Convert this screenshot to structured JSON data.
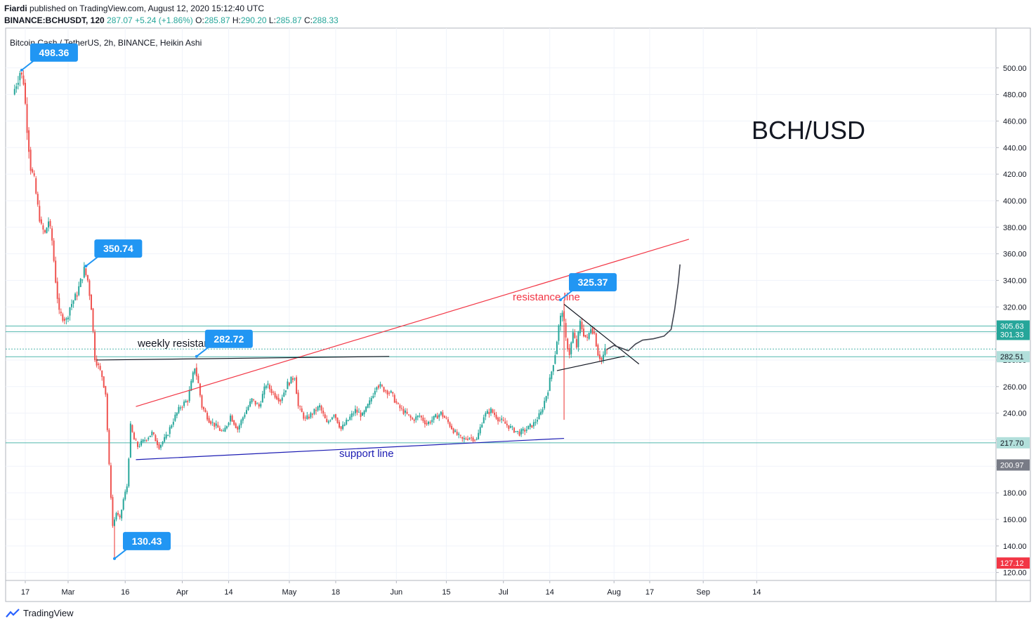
{
  "header": {
    "author": "Fiardi",
    "published": "published on TradingView.com, August 12, 2020 15:12:40 UTC",
    "symbol": "BINANCE:BCHUSDT, 120",
    "last": "287.07",
    "change": "+5.24 (+1.86%)",
    "o_label": "O:",
    "o_val": "285.87",
    "h_label": "H:",
    "h_val": "290.20",
    "l_label": "L:",
    "l_val": "285.87",
    "c_label": "C:",
    "c_val": "288.33"
  },
  "footer": {
    "brand": "TradingView"
  },
  "chart_data": {
    "type": "line",
    "chart_style": "Heikin Ashi candlesticks",
    "title": "BCH/USD",
    "series_label": "Bitcoin Cash / TetherUS, 2h, BINANCE, Heikin Ashi",
    "x_tick_labels": [
      "17",
      "Mar",
      "16",
      "Apr",
      "14",
      "May",
      "18",
      "Jun",
      "15",
      "Jul",
      "14",
      "Aug",
      "17",
      "Sep",
      "14"
    ],
    "x_ticks_day": [
      0,
      12,
      28,
      44,
      57,
      74,
      87,
      104,
      118,
      134,
      147,
      165,
      175,
      190,
      205
    ],
    "y_tick_labels": [
      "120.00",
      "140.00",
      "160.00",
      "180.00",
      "200.00",
      "220.00",
      "240.00",
      "260.00",
      "280.00",
      "300.00",
      "320.00",
      "340.00",
      "360.00",
      "380.00",
      "400.00",
      "420.00",
      "440.00",
      "460.00",
      "480.00",
      "500.00"
    ],
    "ylim": [
      114,
      530
    ],
    "scale": "linear",
    "grid": true,
    "up_color": "#26a69a",
    "down_color": "#ef5350",
    "price_path": [
      {
        "day": -3,
        "price": 480
      },
      {
        "day": -1,
        "price": 497
      },
      {
        "day": 0,
        "price": 490
      },
      {
        "day": 1,
        "price": 455
      },
      {
        "day": 2,
        "price": 425
      },
      {
        "day": 3,
        "price": 415
      },
      {
        "day": 4,
        "price": 395
      },
      {
        "day": 5,
        "price": 380
      },
      {
        "day": 6,
        "price": 375
      },
      {
        "day": 7,
        "price": 385
      },
      {
        "day": 8,
        "price": 370
      },
      {
        "day": 9,
        "price": 340
      },
      {
        "day": 10,
        "price": 315
      },
      {
        "day": 12,
        "price": 310
      },
      {
        "day": 13,
        "price": 320
      },
      {
        "day": 15,
        "price": 330
      },
      {
        "day": 17,
        "price": 348
      },
      {
        "day": 18,
        "price": 340
      },
      {
        "day": 19,
        "price": 320
      },
      {
        "day": 20,
        "price": 282
      },
      {
        "day": 21,
        "price": 275
      },
      {
        "day": 22,
        "price": 268
      },
      {
        "day": 23,
        "price": 255
      },
      {
        "day": 24,
        "price": 200
      },
      {
        "day": 25,
        "price": 155
      },
      {
        "day": 26,
        "price": 165
      },
      {
        "day": 27,
        "price": 160
      },
      {
        "day": 28,
        "price": 175
      },
      {
        "day": 29,
        "price": 185
      },
      {
        "day": 30,
        "price": 230
      },
      {
        "day": 31,
        "price": 220
      },
      {
        "day": 32,
        "price": 215
      },
      {
        "day": 34,
        "price": 220
      },
      {
        "day": 36,
        "price": 225
      },
      {
        "day": 38,
        "price": 215
      },
      {
        "day": 40,
        "price": 222
      },
      {
        "day": 42,
        "price": 235
      },
      {
        "day": 44,
        "price": 245
      },
      {
        "day": 46,
        "price": 250
      },
      {
        "day": 48,
        "price": 275
      },
      {
        "day": 49,
        "price": 262
      },
      {
        "day": 50,
        "price": 245
      },
      {
        "day": 52,
        "price": 235
      },
      {
        "day": 54,
        "price": 230
      },
      {
        "day": 56,
        "price": 225
      },
      {
        "day": 58,
        "price": 238
      },
      {
        "day": 60,
        "price": 228
      },
      {
        "day": 62,
        "price": 240
      },
      {
        "day": 64,
        "price": 250
      },
      {
        "day": 66,
        "price": 245
      },
      {
        "day": 68,
        "price": 262
      },
      {
        "day": 70,
        "price": 255
      },
      {
        "day": 72,
        "price": 250
      },
      {
        "day": 74,
        "price": 262
      },
      {
        "day": 76,
        "price": 268
      },
      {
        "day": 77,
        "price": 245
      },
      {
        "day": 79,
        "price": 235
      },
      {
        "day": 81,
        "price": 240
      },
      {
        "day": 83,
        "price": 245
      },
      {
        "day": 85,
        "price": 232
      },
      {
        "day": 87,
        "price": 240
      },
      {
        "day": 89,
        "price": 228
      },
      {
        "day": 91,
        "price": 235
      },
      {
        "day": 93,
        "price": 242
      },
      {
        "day": 95,
        "price": 238
      },
      {
        "day": 97,
        "price": 248
      },
      {
        "day": 99,
        "price": 262
      },
      {
        "day": 101,
        "price": 258
      },
      {
        "day": 103,
        "price": 255
      },
      {
        "day": 105,
        "price": 245
      },
      {
        "day": 107,
        "price": 240
      },
      {
        "day": 109,
        "price": 235
      },
      {
        "day": 111,
        "price": 238
      },
      {
        "day": 113,
        "price": 232
      },
      {
        "day": 115,
        "price": 236
      },
      {
        "day": 117,
        "price": 240
      },
      {
        "day": 119,
        "price": 233
      },
      {
        "day": 121,
        "price": 225
      },
      {
        "day": 123,
        "price": 220
      },
      {
        "day": 125,
        "price": 222
      },
      {
        "day": 127,
        "price": 220
      },
      {
        "day": 129,
        "price": 238
      },
      {
        "day": 131,
        "price": 242
      },
      {
        "day": 133,
        "price": 236
      },
      {
        "day": 135,
        "price": 232
      },
      {
        "day": 137,
        "price": 228
      },
      {
        "day": 139,
        "price": 225
      },
      {
        "day": 141,
        "price": 228
      },
      {
        "day": 143,
        "price": 232
      },
      {
        "day": 145,
        "price": 240
      },
      {
        "day": 147,
        "price": 258
      },
      {
        "day": 149,
        "price": 285
      },
      {
        "day": 150,
        "price": 305
      },
      {
        "day": 151,
        "price": 318
      },
      {
        "day": 152,
        "price": 295
      },
      {
        "day": 153,
        "price": 285
      },
      {
        "day": 154,
        "price": 300
      },
      {
        "day": 155,
        "price": 290
      },
      {
        "day": 156,
        "price": 308
      },
      {
        "day": 157,
        "price": 300
      },
      {
        "day": 158,
        "price": 295
      },
      {
        "day": 159,
        "price": 305
      },
      {
        "day": 160,
        "price": 300
      },
      {
        "day": 161,
        "price": 285
      },
      {
        "day": 162,
        "price": 280
      },
      {
        "day": 163,
        "price": 287
      }
    ],
    "wicks": [
      {
        "day": 25,
        "high": 155,
        "low": 130.43
      },
      {
        "day": 151,
        "high": 325.37,
        "low": 235
      }
    ],
    "annotations": [
      {
        "label": "498.36",
        "day": -1,
        "price": 498.36
      },
      {
        "label": "350.74",
        "day": 17,
        "price": 350.74
      },
      {
        "label": "282.72",
        "day": 48,
        "price": 282.72
      },
      {
        "label": "130.43",
        "day": 25,
        "price": 130.43
      },
      {
        "label": "325.37",
        "day": 150,
        "price": 325.37
      }
    ],
    "text_labels": [
      {
        "text": "resistance line",
        "color": "#f23645"
      },
      {
        "text": "support line",
        "color": "#1c1cb3"
      },
      {
        "text": "weekly resistance",
        "color": "#131722"
      }
    ],
    "trend_lines": [
      {
        "name": "resistance line",
        "color": "#f23645",
        "from": {
          "day": 31,
          "price": 245
        },
        "to": {
          "day": 186,
          "price": 371
        }
      },
      {
        "name": "support line",
        "color": "#1c1cb3",
        "from": {
          "day": 31,
          "price": 205
        },
        "to": {
          "day": 151,
          "price": 221
        }
      },
      {
        "name": "weekly resistance",
        "color": "#131722",
        "from": {
          "day": 20,
          "price": 280
        },
        "to": {
          "day": 102,
          "price": 282.72
        }
      },
      {
        "name": "triangle upper",
        "color": "#131722",
        "from": {
          "day": 151,
          "price": 322
        },
        "to": {
          "day": 172,
          "price": 277
        }
      },
      {
        "name": "triangle lower",
        "color": "#131722",
        "from": {
          "day": 149,
          "price": 272
        },
        "to": {
          "day": 168,
          "price": 283
        }
      }
    ],
    "horizontal_levels": [
      {
        "price": 305.63,
        "color": "#26a69a",
        "style": "solid"
      },
      {
        "price": 301.33,
        "color": "#26a69a",
        "style": "solid"
      },
      {
        "price": 288.33,
        "color": "#26a69a",
        "style": "dotted"
      },
      {
        "price": 282.51,
        "color": "#26a69a",
        "style": "solid"
      },
      {
        "price": 217.7,
        "color": "#26a69a",
        "style": "solid"
      }
    ],
    "projection_path": [
      {
        "day": 163,
        "price": 288
      },
      {
        "day": 165,
        "price": 291
      },
      {
        "day": 167,
        "price": 289
      },
      {
        "day": 169,
        "price": 287
      },
      {
        "day": 171,
        "price": 292
      },
      {
        "day": 173,
        "price": 295
      },
      {
        "day": 176,
        "price": 296
      },
      {
        "day": 179,
        "price": 298
      },
      {
        "day": 181,
        "price": 303
      },
      {
        "day": 182,
        "price": 318
      },
      {
        "day": 183,
        "price": 338
      },
      {
        "day": 183.5,
        "price": 352
      }
    ],
    "price_scale_labels": [
      {
        "text": "305.63",
        "price": 305.63,
        "bg": "#26a69a"
      },
      {
        "text": "301.33",
        "price": 301.33,
        "bg": "#26a69a"
      },
      {
        "text": "282.51",
        "price": 282.51,
        "bg": "#b2dfdb"
      },
      {
        "text": "217.70",
        "price": 217.7,
        "bg": "#b2dfdb"
      },
      {
        "text": "200.97",
        "price": 200.97,
        "bg": "#787b86"
      },
      {
        "text": "127.12",
        "price": 127.12,
        "bg": "#f23645"
      }
    ]
  }
}
